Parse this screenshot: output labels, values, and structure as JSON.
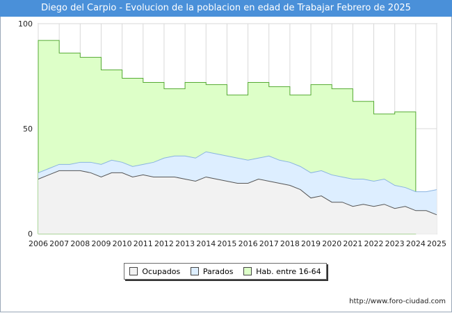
{
  "title": "Diego del Carpio - Evolucion de la poblacion en edad de Trabajar Febrero de 2025",
  "source": "http://www.foro-ciudad.com",
  "colors": {
    "ocupados_fill": "#f2f2f2",
    "ocupados_line": "#555555",
    "parados_fill": "#ddeeff",
    "parados_line": "#8ab4e0",
    "hab_fill": "#ddffc8",
    "hab_line": "#55aa33",
    "grid": "#d8d8d8",
    "title_bg": "#4a90d9"
  },
  "chart_data": {
    "type": "area",
    "title": "Diego del Carpio - Evolucion de la poblacion en edad de Trabajar Febrero de 2025",
    "xlim": [
      2006,
      2025
    ],
    "ylim": [
      0,
      100
    ],
    "y_ticks": [
      0,
      50,
      100
    ],
    "x_ticks": [
      "2006",
      "2007",
      "2008",
      "2009",
      "2010",
      "2011",
      "2012",
      "2013",
      "2014",
      "2015",
      "2016",
      "2017",
      "2018",
      "2019",
      "2020",
      "2021",
      "2022",
      "2023",
      "2024",
      "2025"
    ],
    "grid": true,
    "legend_position": "bottom",
    "series": [
      {
        "name": "Hab. entre 16-64",
        "kind": "step_yearly",
        "years": [
          2006,
          2007,
          2008,
          2009,
          2010,
          2011,
          2012,
          2013,
          2014,
          2015,
          2016,
          2017,
          2018,
          2019,
          2020,
          2021,
          2022,
          2023
        ],
        "values": [
          92,
          86,
          84,
          78,
          74,
          72,
          69,
          72,
          71,
          66,
          72,
          70,
          66,
          71,
          69,
          63,
          57,
          58
        ],
        "end": 2024
      },
      {
        "name": "Parados",
        "kind": "total_active",
        "x": [
          2006.0,
          2006.5,
          2007.0,
          2007.5,
          2008.0,
          2008.5,
          2009.0,
          2009.5,
          2010.0,
          2010.5,
          2011.0,
          2011.5,
          2012.0,
          2012.5,
          2013.0,
          2013.5,
          2014.0,
          2014.5,
          2015.0,
          2015.5,
          2016.0,
          2016.5,
          2017.0,
          2017.5,
          2018.0,
          2018.5,
          2019.0,
          2019.5,
          2020.0,
          2020.5,
          2021.0,
          2021.5,
          2022.0,
          2022.5,
          2023.0,
          2023.5,
          2024.0,
          2024.5,
          2025.0
        ],
        "values": [
          29,
          31,
          33,
          33,
          34,
          34,
          33,
          35,
          34,
          32,
          33,
          34,
          36,
          37,
          37,
          36,
          39,
          38,
          37,
          36,
          35,
          36,
          37,
          35,
          34,
          32,
          29,
          30,
          28,
          27,
          26,
          26,
          25,
          26,
          23,
          22,
          20,
          20,
          21
        ]
      },
      {
        "name": "Ocupados",
        "kind": "employed",
        "x": [
          2006.0,
          2006.5,
          2007.0,
          2007.5,
          2008.0,
          2008.5,
          2009.0,
          2009.5,
          2010.0,
          2010.5,
          2011.0,
          2011.5,
          2012.0,
          2012.5,
          2013.0,
          2013.5,
          2014.0,
          2014.5,
          2015.0,
          2015.5,
          2016.0,
          2016.5,
          2017.0,
          2017.5,
          2018.0,
          2018.5,
          2019.0,
          2019.5,
          2020.0,
          2020.5,
          2021.0,
          2021.5,
          2022.0,
          2022.5,
          2023.0,
          2023.5,
          2024.0,
          2024.5,
          2025.0
        ],
        "values": [
          26,
          28,
          30,
          30,
          30,
          29,
          27,
          29,
          29,
          27,
          28,
          27,
          27,
          27,
          26,
          25,
          27,
          26,
          25,
          24,
          24,
          26,
          25,
          24,
          23,
          21,
          17,
          18,
          15,
          15,
          13,
          14,
          13,
          14,
          12,
          13,
          11,
          11,
          9
        ]
      }
    ]
  },
  "legend": {
    "ocupados": "Ocupados",
    "parados": "Parados",
    "hab": "Hab. entre 16-64"
  }
}
